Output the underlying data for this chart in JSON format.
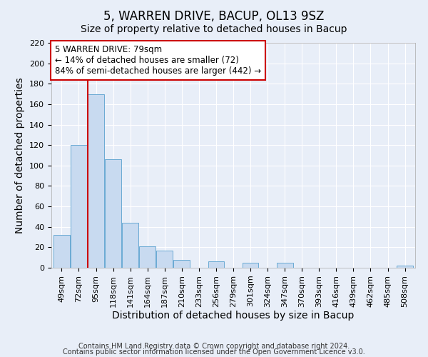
{
  "title": "5, WARREN DRIVE, BACUP, OL13 9SZ",
  "subtitle": "Size of property relative to detached houses in Bacup",
  "xlabel": "Distribution of detached houses by size in Bacup",
  "ylabel": "Number of detached properties",
  "bar_color": "#c8daf0",
  "bar_edge_color": "#6aaad4",
  "categories": [
    "49sqm",
    "72sqm",
    "95sqm",
    "118sqm",
    "141sqm",
    "164sqm",
    "187sqm",
    "210sqm",
    "233sqm",
    "256sqm",
    "279sqm",
    "301sqm",
    "324sqm",
    "347sqm",
    "370sqm",
    "393sqm",
    "416sqm",
    "439sqm",
    "462sqm",
    "485sqm",
    "508sqm"
  ],
  "values": [
    32,
    120,
    170,
    106,
    44,
    21,
    17,
    8,
    0,
    6,
    0,
    5,
    0,
    5,
    0,
    0,
    0,
    0,
    0,
    0,
    2
  ],
  "ylim": [
    0,
    220
  ],
  "yticks": [
    0,
    20,
    40,
    60,
    80,
    100,
    120,
    140,
    160,
    180,
    200,
    220
  ],
  "vline_x": 1.5,
  "vline_color": "#cc0000",
  "annotation_line1": "5 WARREN DRIVE: 79sqm",
  "annotation_line2": "← 14% of detached houses are smaller (72)",
  "annotation_line3": "84% of semi-detached houses are larger (442) →",
  "annotation_box_color": "#ffffff",
  "annotation_box_edge": "#cc0000",
  "footer1": "Contains HM Land Registry data © Crown copyright and database right 2024.",
  "footer2": "Contains public sector information licensed under the Open Government Licence v3.0.",
  "background_color": "#e8eef8",
  "grid_color": "#ffffff",
  "title_fontsize": 12,
  "subtitle_fontsize": 10,
  "axis_label_fontsize": 10,
  "tick_fontsize": 8,
  "annotation_fontsize": 8.5,
  "footer_fontsize": 7
}
